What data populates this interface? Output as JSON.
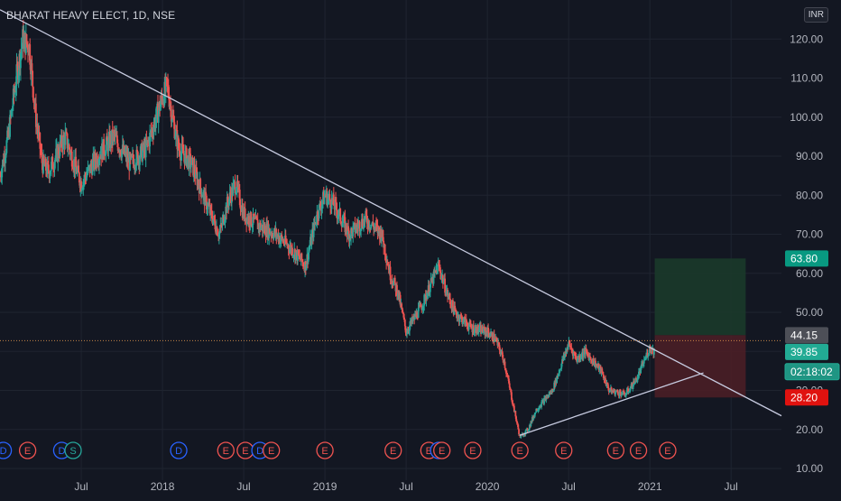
{
  "header": {
    "title": "BHARAT HEAVY ELECT, 1D, NSE",
    "currency_button": "INR"
  },
  "colors": {
    "background": "#131722",
    "grid": "#1f2430",
    "axis_text": "#b2b5be",
    "bull": "#26a69a",
    "bear": "#ef5350",
    "trendline": "#c7cbe0",
    "profit_zone": "#1b3a2a",
    "loss_zone": "#4a1e26",
    "badge_green": "#089981",
    "badge_red": "#e0120f",
    "badge_gray": "#4d4f57",
    "badge_teal": "#22ab94",
    "dividend": "#2962ff",
    "split": "#26a69a",
    "earnings": "#ef5350"
  },
  "chart_data": {
    "type": "candlestick",
    "title": "BHARAT HEAVY ELECT, 1D, NSE",
    "y_axis": {
      "ticks": [
        "120.00",
        "110.00",
        "100.00",
        "90.00",
        "80.00",
        "70.00",
        "60.00",
        "50.00",
        "40.00",
        "30.00",
        "20.00",
        "10.00"
      ],
      "range": [
        7,
        130
      ]
    },
    "x_axis": {
      "ticks": [
        {
          "label": "Jul",
          "t": 2017.5
        },
        {
          "label": "2018",
          "t": 2018.0
        },
        {
          "label": "Jul",
          "t": 2018.5
        },
        {
          "label": "2019",
          "t": 2019.0
        },
        {
          "label": "Jul",
          "t": 2019.5
        },
        {
          "label": "2020",
          "t": 2020.0
        },
        {
          "label": "Jul",
          "t": 2020.5
        },
        {
          "label": "2021",
          "t": 2021.0
        },
        {
          "label": "Jul",
          "t": 2021.5
        }
      ],
      "range": [
        2017.0,
        2021.81
      ]
    },
    "price_path": [
      [
        2017.0,
        85
      ],
      [
        2017.05,
        95
      ],
      [
        2017.1,
        110
      ],
      [
        2017.14,
        120
      ],
      [
        2017.18,
        118
      ],
      [
        2017.22,
        100
      ],
      [
        2017.26,
        88
      ],
      [
        2017.3,
        86
      ],
      [
        2017.4,
        95
      ],
      [
        2017.5,
        83
      ],
      [
        2017.6,
        90
      ],
      [
        2017.7,
        95
      ],
      [
        2017.8,
        88
      ],
      [
        2017.9,
        92
      ],
      [
        2018.0,
        105
      ],
      [
        2018.03,
        108
      ],
      [
        2018.06,
        100
      ],
      [
        2018.1,
        92
      ],
      [
        2018.18,
        88
      ],
      [
        2018.25,
        80
      ],
      [
        2018.35,
        70
      ],
      [
        2018.4,
        78
      ],
      [
        2018.45,
        83
      ],
      [
        2018.5,
        75
      ],
      [
        2018.6,
        72
      ],
      [
        2018.7,
        70
      ],
      [
        2018.8,
        66
      ],
      [
        2018.88,
        62
      ],
      [
        2018.95,
        75
      ],
      [
        2019.0,
        80
      ],
      [
        2019.05,
        78
      ],
      [
        2019.15,
        70
      ],
      [
        2019.25,
        74
      ],
      [
        2019.35,
        70
      ],
      [
        2019.4,
        60
      ],
      [
        2019.45,
        55
      ],
      [
        2019.5,
        45
      ],
      [
        2019.6,
        52
      ],
      [
        2019.7,
        62
      ],
      [
        2019.75,
        55
      ],
      [
        2019.8,
        50
      ],
      [
        2019.9,
        46
      ],
      [
        2020.0,
        45
      ],
      [
        2020.05,
        43
      ],
      [
        2020.1,
        38
      ],
      [
        2020.15,
        28
      ],
      [
        2020.2,
        18
      ],
      [
        2020.25,
        20
      ],
      [
        2020.3,
        25
      ],
      [
        2020.4,
        30
      ],
      [
        2020.5,
        42
      ],
      [
        2020.55,
        38
      ],
      [
        2020.6,
        40
      ],
      [
        2020.7,
        35
      ],
      [
        2020.75,
        30
      ],
      [
        2020.85,
        29
      ],
      [
        2020.92,
        33
      ],
      [
        2021.0,
        41
      ],
      [
        2021.03,
        40
      ]
    ],
    "trendlines": [
      {
        "from": [
          2017.0,
          127.5
        ],
        "to": [
          2021.81,
          23.5
        ]
      },
      {
        "from": [
          2020.2,
          18.5
        ],
        "to": [
          2021.33,
          34.5
        ]
      }
    ],
    "position": {
      "entry": 44.15,
      "target": 63.8,
      "stop": 28.2,
      "t_start": 2021.03,
      "t_end": 2021.59
    },
    "current_price": 39.85,
    "price_labels": [
      {
        "text": "63.80",
        "price": 63.8,
        "kind": "green"
      },
      {
        "text": "44.15",
        "price": 44.15,
        "kind": "gray"
      },
      {
        "text": "39.85",
        "price": 39.85,
        "kind": "teal"
      },
      {
        "text": "02:18:02",
        "price": 34.8,
        "kind": "teal_outline"
      },
      {
        "text": "28.20",
        "price": 28.2,
        "kind": "red"
      }
    ],
    "events": [
      {
        "t": 2017.02,
        "label": "D",
        "kind": "dividend"
      },
      {
        "t": 2017.17,
        "label": "E",
        "kind": "earnings"
      },
      {
        "t": 2017.38,
        "label": "D",
        "kind": "dividend"
      },
      {
        "t": 2017.45,
        "label": "S",
        "kind": "split"
      },
      {
        "t": 2018.1,
        "label": "D",
        "kind": "dividend"
      },
      {
        "t": 2018.39,
        "label": "E",
        "kind": "earnings"
      },
      {
        "t": 2018.51,
        "label": "E",
        "kind": "earnings"
      },
      {
        "t": 2018.6,
        "label": "D",
        "kind": "dividend"
      },
      {
        "t": 2018.67,
        "label": "E",
        "kind": "earnings"
      },
      {
        "t": 2019.0,
        "label": "E",
        "kind": "earnings"
      },
      {
        "t": 2019.42,
        "label": "E",
        "kind": "earnings"
      },
      {
        "t": 2019.64,
        "label": "E",
        "kind": "earnings"
      },
      {
        "t": 2019.7,
        "label": "D",
        "kind": "dividend"
      },
      {
        "t": 2019.72,
        "label": "E",
        "kind": "earnings"
      },
      {
        "t": 2019.91,
        "label": "E",
        "kind": "earnings"
      },
      {
        "t": 2020.2,
        "label": "E",
        "kind": "earnings"
      },
      {
        "t": 2020.47,
        "label": "E",
        "kind": "earnings"
      },
      {
        "t": 2020.79,
        "label": "E",
        "kind": "earnings"
      },
      {
        "t": 2020.93,
        "label": "E",
        "kind": "earnings"
      },
      {
        "t": 2021.11,
        "label": "E",
        "kind": "earnings"
      }
    ]
  }
}
